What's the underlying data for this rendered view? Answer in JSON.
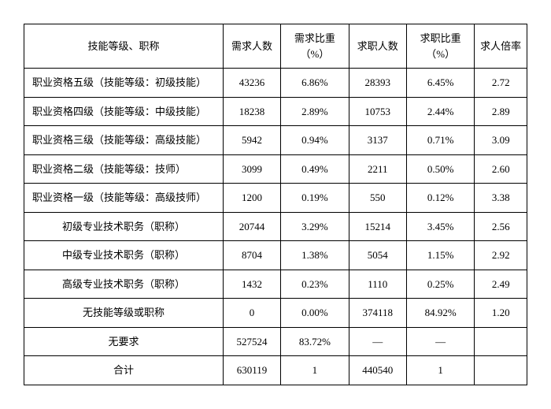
{
  "table": {
    "headers": {
      "label": "技能等级、职称",
      "demand_count": "需求人数",
      "demand_pct": "需求比重（%）",
      "supply_count": "求职人数",
      "supply_pct": "求职比重（%）",
      "ratio": "求人倍率"
    },
    "rows": [
      {
        "label": "职业资格五级（技能等级：初级技能）",
        "align": "left",
        "demand_count": "43236",
        "demand_pct": "6.86%",
        "supply_count": "28393",
        "supply_pct": "6.45%",
        "ratio": "2.72"
      },
      {
        "label": "职业资格四级（技能等级：中级技能）",
        "align": "left",
        "demand_count": "18238",
        "demand_pct": "2.89%",
        "supply_count": "10753",
        "supply_pct": "2.44%",
        "ratio": "2.89"
      },
      {
        "label": "职业资格三级（技能等级：高级技能）",
        "align": "left",
        "demand_count": "5942",
        "demand_pct": "0.94%",
        "supply_count": "3137",
        "supply_pct": "0.71%",
        "ratio": "3.09"
      },
      {
        "label": "职业资格二级（技能等级：技师）",
        "align": "left",
        "demand_count": "3099",
        "demand_pct": "0.49%",
        "supply_count": "2211",
        "supply_pct": "0.50%",
        "ratio": "2.60"
      },
      {
        "label": "职业资格一级（技能等级：高级技师）",
        "align": "left",
        "demand_count": "1200",
        "demand_pct": "0.19%",
        "supply_count": "550",
        "supply_pct": "0.12%",
        "ratio": "3.38"
      },
      {
        "label": "初级专业技术职务（职称）",
        "align": "center",
        "demand_count": "20744",
        "demand_pct": "3.29%",
        "supply_count": "15214",
        "supply_pct": "3.45%",
        "ratio": "2.56"
      },
      {
        "label": "中级专业技术职务（职称）",
        "align": "center",
        "demand_count": "8704",
        "demand_pct": "1.38%",
        "supply_count": "5054",
        "supply_pct": "1.15%",
        "ratio": "2.92"
      },
      {
        "label": "高级专业技术职务（职称）",
        "align": "center",
        "demand_count": "1432",
        "demand_pct": "0.23%",
        "supply_count": "1110",
        "supply_pct": "0.25%",
        "ratio": "2.49"
      },
      {
        "label": "无技能等级或职称",
        "align": "center",
        "demand_count": "0",
        "demand_pct": "0.00%",
        "supply_count": "374118",
        "supply_pct": "84.92%",
        "ratio": "1.20"
      },
      {
        "label": "无要求",
        "align": "center",
        "demand_count": "527524",
        "demand_pct": "83.72%",
        "supply_count": "—",
        "supply_pct": "—",
        "ratio": ""
      },
      {
        "label": "合计",
        "align": "center",
        "demand_count": "630119",
        "demand_pct": "1",
        "supply_count": "440540",
        "supply_pct": "1",
        "ratio": ""
      }
    ]
  }
}
